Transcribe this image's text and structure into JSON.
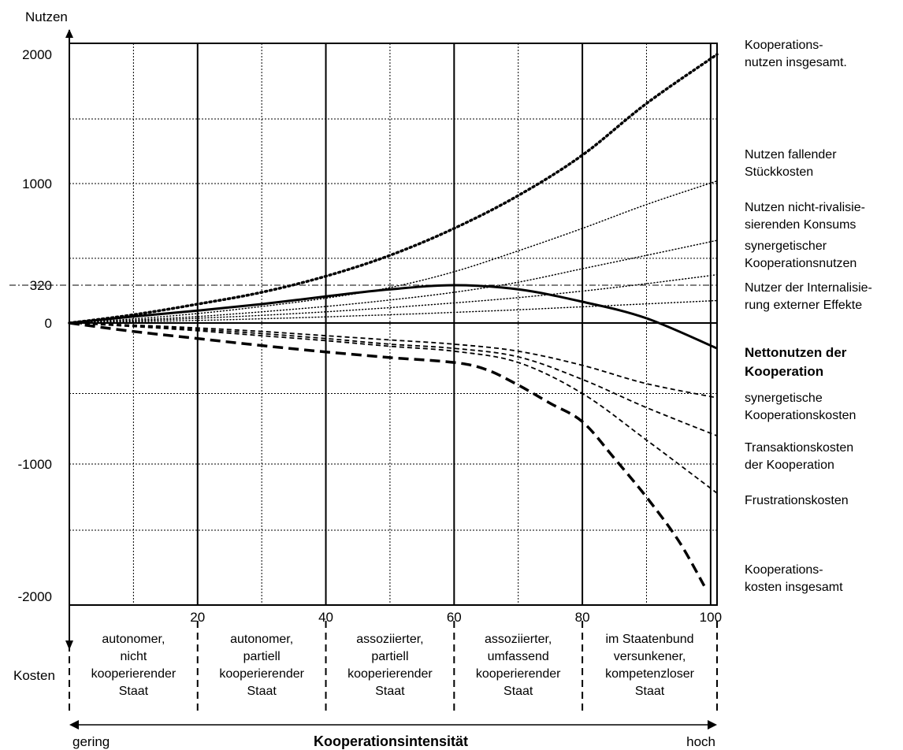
{
  "chart_data": {
    "type": "line",
    "y_axis_top_label": "Nutzen",
    "y_axis_bottom_label": "Kosten",
    "xlabel": "Kooperationsintensität",
    "x_axis_low_label": "gering",
    "x_axis_high_label": "hoch",
    "xlim": [
      0,
      101
    ],
    "ylim": [
      -2000,
      2000
    ],
    "x_ticks": [
      20,
      40,
      60,
      80,
      100
    ],
    "y_ticks": [
      {
        "value": 2000,
        "label": "2000"
      },
      {
        "value": 1000,
        "label": "1000"
      },
      {
        "value": 320,
        "label": "320"
      },
      {
        "value": 0,
        "label": "0"
      },
      {
        "value": -1000,
        "label": "-1000"
      },
      {
        "value": -2000,
        "label": "-2000"
      }
    ],
    "grid": true,
    "stages": [
      {
        "from": 0,
        "to": 20,
        "label": "autonomer,\nnicht\nkooperierender\nStaat"
      },
      {
        "from": 20,
        "to": 40,
        "label": "autonomer,\npartiell\nkooperierender\nStaat"
      },
      {
        "from": 40,
        "to": 60,
        "label": "assoziierter,\npartiell\nkooperierender\nStaat"
      },
      {
        "from": 60,
        "to": 80,
        "label": "assoziierter,\numfassend\nkooperierender\nStaat"
      },
      {
        "from": 80,
        "to": 101,
        "label": "im Staatenbund\nversunkener,\nkompetenzloser\nStaat"
      }
    ],
    "series": [
      {
        "name": "Kooperations-\nnutzen insgesamt.",
        "style": "dotted-heavy",
        "label_y": 2000,
        "points": [
          [
            0,
            0
          ],
          [
            10,
            70
          ],
          [
            20,
            160
          ],
          [
            30,
            260
          ],
          [
            40,
            380
          ],
          [
            50,
            520
          ],
          [
            60,
            700
          ],
          [
            70,
            920
          ],
          [
            80,
            1220
          ],
          [
            90,
            1620
          ],
          [
            101,
            2000
          ]
        ]
      },
      {
        "name": "Nutzen fallender\nStückkosten",
        "style": "dotted",
        "label_y": 1150,
        "points": [
          [
            0,
            0
          ],
          [
            10,
            35
          ],
          [
            20,
            80
          ],
          [
            30,
            140
          ],
          [
            40,
            210
          ],
          [
            50,
            300
          ],
          [
            60,
            410
          ],
          [
            70,
            550
          ],
          [
            80,
            700
          ],
          [
            90,
            860
          ],
          [
            101,
            1020
          ]
        ]
      },
      {
        "name": "Nutzen nicht-rivalisie-\nsierenden Konsums",
        "style": "dotted",
        "label_y": 780,
        "points": [
          [
            0,
            0
          ],
          [
            10,
            25
          ],
          [
            20,
            55
          ],
          [
            30,
            95
          ],
          [
            40,
            140
          ],
          [
            50,
            195
          ],
          [
            60,
            260
          ],
          [
            70,
            340
          ],
          [
            80,
            430
          ],
          [
            90,
            520
          ],
          [
            101,
            620
          ]
        ]
      },
      {
        "name": "synergetischer\nKooperationsnutzen",
        "style": "dotted",
        "label_y": 520,
        "points": [
          [
            0,
            0
          ],
          [
            10,
            18
          ],
          [
            20,
            40
          ],
          [
            30,
            65
          ],
          [
            40,
            95
          ],
          [
            50,
            130
          ],
          [
            60,
            170
          ],
          [
            70,
            215
          ],
          [
            80,
            270
          ],
          [
            90,
            330
          ],
          [
            101,
            390
          ]
        ]
      },
      {
        "name": "Nutzer der Internalisie-\nrung externer Effekte",
        "style": "dotted",
        "label_y": 220,
        "points": [
          [
            0,
            0
          ],
          [
            10,
            10
          ],
          [
            20,
            22
          ],
          [
            30,
            36
          ],
          [
            40,
            52
          ],
          [
            50,
            70
          ],
          [
            60,
            90
          ],
          [
            70,
            112
          ],
          [
            80,
            137
          ],
          [
            90,
            162
          ],
          [
            101,
            190
          ]
        ]
      },
      {
        "name": "Nettonutzen der\nKooperation",
        "style": "solid",
        "bold_label": true,
        "label_y": -280,
        "points": [
          [
            0,
            0
          ],
          [
            10,
            55
          ],
          [
            20,
            105
          ],
          [
            30,
            160
          ],
          [
            40,
            225
          ],
          [
            50,
            285
          ],
          [
            60,
            320
          ],
          [
            70,
            285
          ],
          [
            80,
            180
          ],
          [
            90,
            40
          ],
          [
            101,
            -180
          ]
        ]
      },
      {
        "name": "synergetische\nKooperationskosten",
        "style": "dashed",
        "label_y": -600,
        "points": [
          [
            0,
            0
          ],
          [
            10,
            -15
          ],
          [
            20,
            -35
          ],
          [
            30,
            -60
          ],
          [
            40,
            -90
          ],
          [
            50,
            -120
          ],
          [
            60,
            -150
          ],
          [
            70,
            -200
          ],
          [
            80,
            -300
          ],
          [
            90,
            -430
          ],
          [
            101,
            -530
          ]
        ]
      },
      {
        "name": "Transaktionskosten\nder Kooperation",
        "style": "dashed",
        "label_y": -950,
        "points": [
          [
            0,
            0
          ],
          [
            10,
            -20
          ],
          [
            20,
            -45
          ],
          [
            30,
            -75
          ],
          [
            40,
            -110
          ],
          [
            50,
            -150
          ],
          [
            60,
            -180
          ],
          [
            70,
            -240
          ],
          [
            80,
            -400
          ],
          [
            90,
            -600
          ],
          [
            101,
            -800
          ]
        ]
      },
      {
        "name": "Frustrationskosten",
        "style": "dashed",
        "label_y": -1280,
        "points": [
          [
            0,
            0
          ],
          [
            10,
            -25
          ],
          [
            20,
            -55
          ],
          [
            30,
            -90
          ],
          [
            40,
            -125
          ],
          [
            50,
            -165
          ],
          [
            60,
            -200
          ],
          [
            70,
            -280
          ],
          [
            80,
            -500
          ],
          [
            90,
            -830
          ],
          [
            101,
            -1220
          ]
        ]
      },
      {
        "name": "Kooperations-\nkosten insgesamt",
        "style": "dashed-heavy",
        "label_y": -1870,
        "points": [
          [
            0,
            0
          ],
          [
            10,
            -60
          ],
          [
            20,
            -110
          ],
          [
            30,
            -160
          ],
          [
            40,
            -205
          ],
          [
            50,
            -245
          ],
          [
            60,
            -280
          ],
          [
            65,
            -330
          ],
          [
            70,
            -440
          ],
          [
            75,
            -570
          ],
          [
            80,
            -700
          ],
          [
            85,
            -960
          ],
          [
            90,
            -1250
          ],
          [
            95,
            -1580
          ],
          [
            99,
            -1920
          ]
        ]
      }
    ]
  }
}
